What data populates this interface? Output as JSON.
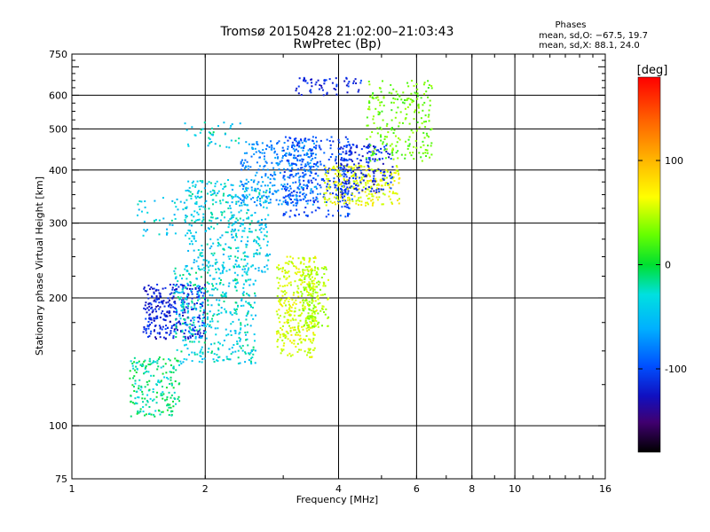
{
  "chart_data": {
    "type": "scatter",
    "title": "Tromsø 20150428 21:02:00–21:03:43",
    "subtitle": "RwPretec (Bp)",
    "xlabel": "Frequency [MHz]",
    "ylabel": "Stationary phase Virtual Height [km]",
    "x_scale": "log",
    "y_scale": "log",
    "xlim": [
      1,
      16
    ],
    "ylim": [
      75,
      750
    ],
    "x_ticks": [
      1,
      2,
      4,
      6,
      8,
      10,
      16
    ],
    "y_ticks": [
      75,
      100,
      200,
      300,
      400,
      500,
      600,
      750
    ],
    "x_grid": [
      2,
      4,
      6,
      8,
      10
    ],
    "y_grid": [
      100,
      200,
      300,
      400,
      500,
      600
    ],
    "grid": true,
    "annotation": {
      "heading": "Phases",
      "line1": "mean, sd,O: −67.5, 19.7",
      "line2": "mean, sd,X:  88.1, 24.0"
    },
    "colorbar": {
      "label": "[deg]",
      "ticks": [
        100,
        0,
        -100
      ],
      "range": [
        -180,
        180
      ],
      "placement": "right"
    },
    "clusters": [
      {
        "x": [
          1.35,
          1.75
        ],
        "y": [
          105,
          145
        ],
        "phase": -10,
        "n": 200
      },
      {
        "x": [
          1.45,
          2.0
        ],
        "y": [
          160,
          215
        ],
        "phase": -115,
        "n": 320
      },
      {
        "x": [
          1.7,
          2.6
        ],
        "y": [
          140,
          240
        ],
        "phase": -25,
        "n": 420
      },
      {
        "x": [
          1.8,
          2.8
        ],
        "y": [
          230,
          380
        ],
        "phase": -30,
        "n": 420
      },
      {
        "x": [
          2.4,
          3.6
        ],
        "y": [
          330,
          470
        ],
        "phase": -65,
        "n": 300
      },
      {
        "x": [
          3.0,
          4.3
        ],
        "y": [
          310,
          480
        ],
        "phase": -95,
        "n": 320
      },
      {
        "x": [
          2.9,
          3.6
        ],
        "y": [
          145,
          250
        ],
        "phase": 75,
        "n": 330
      },
      {
        "x": [
          3.3,
          3.8
        ],
        "y": [
          170,
          240
        ],
        "phase": 60,
        "n": 150
      },
      {
        "x": [
          3.7,
          5.5
        ],
        "y": [
          330,
          410
        ],
        "phase": 80,
        "n": 260
      },
      {
        "x": [
          4.0,
          5.3
        ],
        "y": [
          350,
          460
        ],
        "phase": -110,
        "n": 180
      },
      {
        "x": [
          4.6,
          6.5
        ],
        "y": [
          420,
          650
        ],
        "phase": 40,
        "n": 230
      },
      {
        "x": [
          3.2,
          4.5
        ],
        "y": [
          600,
          660
        ],
        "phase": -110,
        "n": 60
      },
      {
        "x": [
          1.8,
          2.4
        ],
        "y": [
          450,
          520
        ],
        "phase": -25,
        "n": 40
      },
      {
        "x": [
          1.4,
          1.8
        ],
        "y": [
          280,
          345
        ],
        "phase": -30,
        "n": 40
      }
    ]
  }
}
